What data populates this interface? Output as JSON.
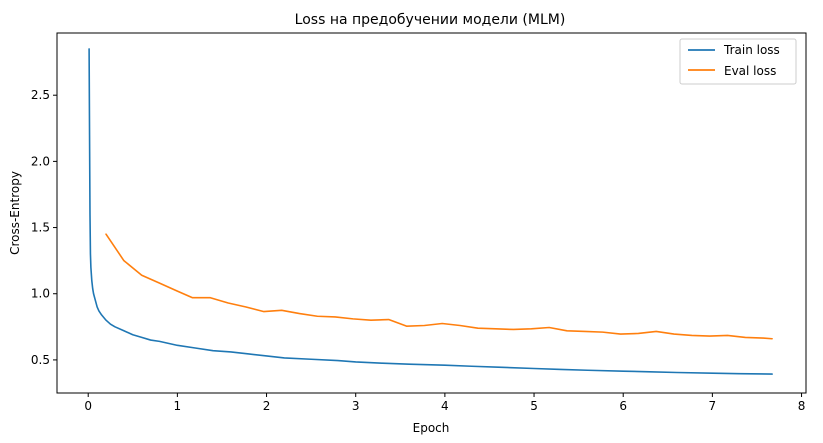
{
  "chart_data": {
    "type": "line",
    "title": "Loss на предобучении модели (MLM)",
    "xlabel": "Epoch",
    "ylabel": "Cross-Entropy",
    "xlim": [
      -0.35,
      8.05
    ],
    "ylim": [
      0.25,
      2.97
    ],
    "xticks": [
      0,
      1,
      2,
      3,
      4,
      5,
      6,
      7,
      8
    ],
    "yticks": [
      0.5,
      1.0,
      1.5,
      2.0,
      2.5
    ],
    "xtick_labels": [
      "0",
      "1",
      "2",
      "3",
      "4",
      "5",
      "6",
      "7",
      "8"
    ],
    "ytick_labels": [
      "0.5",
      "1.0",
      "1.5",
      "2.0",
      "2.5"
    ],
    "grid": false,
    "legend_position": "top-right",
    "series": [
      {
        "name": "Train loss",
        "color": "#1f77b4",
        "x": [
          0.01,
          0.015,
          0.02,
          0.025,
          0.03,
          0.04,
          0.05,
          0.06,
          0.08,
          0.1,
          0.12,
          0.15,
          0.2,
          0.25,
          0.3,
          0.4,
          0.5,
          0.6,
          0.7,
          0.8,
          1.0,
          1.2,
          1.4,
          1.6,
          1.8,
          2.0,
          2.2,
          2.5,
          2.8,
          3.0,
          3.3,
          3.6,
          4.0,
          4.3,
          4.6,
          5.0,
          5.3,
          5.6,
          6.0,
          6.3,
          6.6,
          7.0,
          7.3,
          7.67
        ],
        "y": [
          2.85,
          2.2,
          1.6,
          1.3,
          1.2,
          1.1,
          1.04,
          1.0,
          0.95,
          0.9,
          0.87,
          0.84,
          0.8,
          0.77,
          0.75,
          0.72,
          0.69,
          0.67,
          0.65,
          0.64,
          0.61,
          0.59,
          0.57,
          0.56,
          0.545,
          0.53,
          0.515,
          0.505,
          0.495,
          0.485,
          0.475,
          0.468,
          0.46,
          0.452,
          0.445,
          0.435,
          0.428,
          0.422,
          0.415,
          0.41,
          0.405,
          0.4,
          0.396,
          0.393
        ]
      },
      {
        "name": "Eval loss",
        "color": "#ff7f0e",
        "x": [
          0.2,
          0.4,
          0.6,
          0.8,
          1.0,
          1.17,
          1.37,
          1.57,
          1.77,
          1.97,
          2.17,
          2.37,
          2.57,
          2.77,
          2.97,
          3.17,
          3.37,
          3.57,
          3.77,
          3.97,
          4.17,
          4.37,
          4.57,
          4.77,
          4.97,
          5.17,
          5.37,
          5.57,
          5.77,
          5.97,
          6.17,
          6.37,
          6.57,
          6.77,
          6.97,
          7.17,
          7.37,
          7.57,
          7.67
        ],
        "y": [
          1.45,
          1.25,
          1.14,
          1.08,
          1.02,
          0.97,
          0.97,
          0.93,
          0.9,
          0.865,
          0.875,
          0.85,
          0.83,
          0.825,
          0.81,
          0.8,
          0.805,
          0.755,
          0.76,
          0.775,
          0.76,
          0.74,
          0.735,
          0.73,
          0.735,
          0.745,
          0.72,
          0.715,
          0.71,
          0.695,
          0.7,
          0.715,
          0.695,
          0.685,
          0.68,
          0.685,
          0.67,
          0.665,
          0.66
        ]
      }
    ]
  }
}
